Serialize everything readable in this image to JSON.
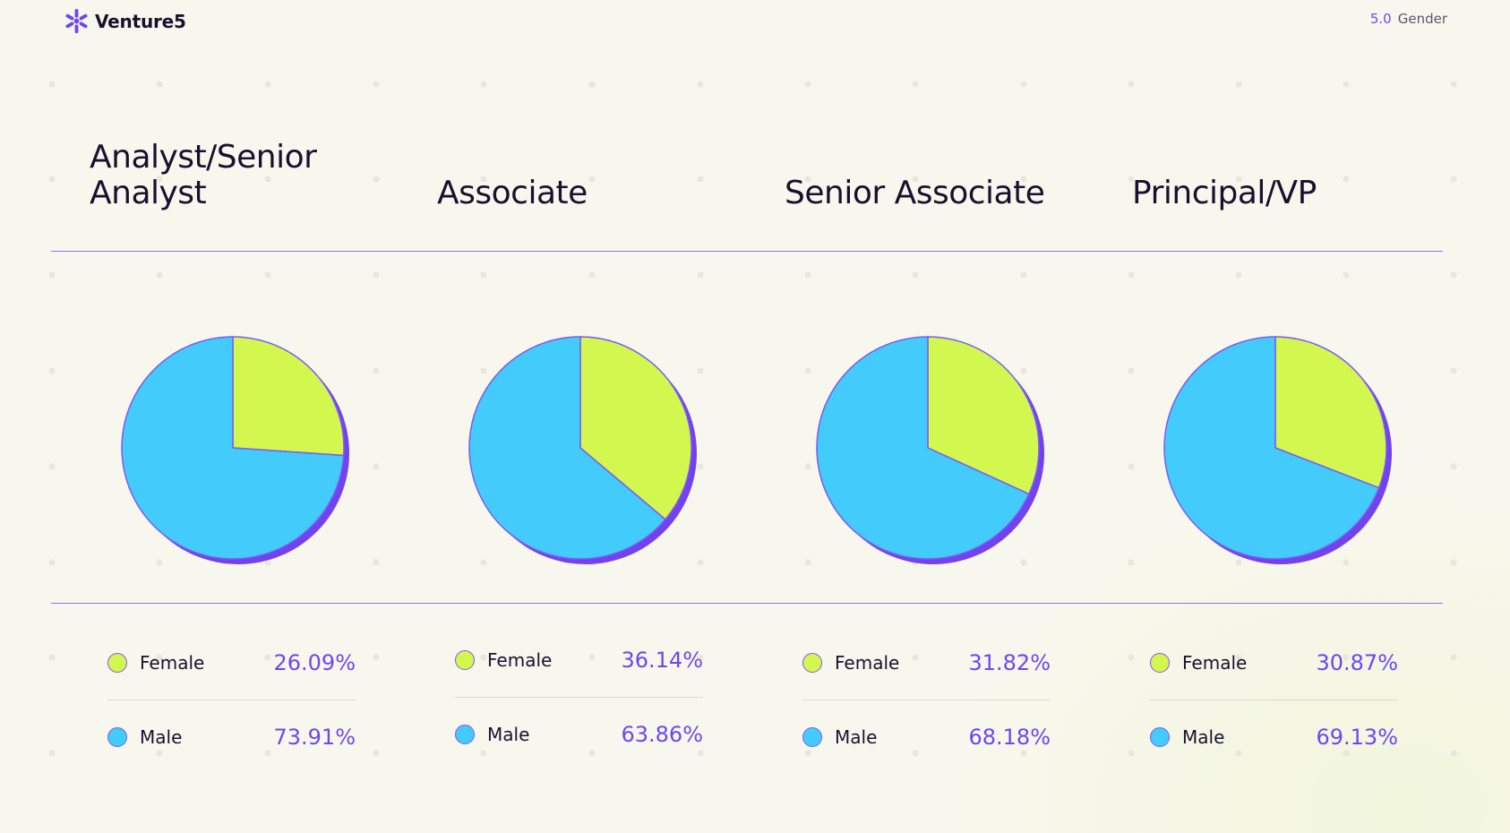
{
  "header": {
    "brand": "Venture5",
    "section_number": "5.0",
    "section_title": "Gender"
  },
  "colors": {
    "female": "#d2f74e",
    "male": "#43cbfb",
    "shadow": "#7342f0",
    "accent": "#6b48f0",
    "outline": "#7c5cf0"
  },
  "chart_data": [
    {
      "type": "pie",
      "title": "Analyst/Senior Analyst",
      "labels": [
        "Female",
        "Male"
      ],
      "label_text": [
        "Female",
        "Male"
      ],
      "values": [
        26.09,
        73.91
      ],
      "value_labels": [
        "26.09%",
        "73.91%"
      ]
    },
    {
      "type": "pie",
      "title": "Associate",
      "labels": [
        "Female",
        "Male"
      ],
      "label_text": [
        "Female",
        "Male"
      ],
      "values": [
        36.14,
        63.86
      ],
      "value_labels": [
        "36.14%",
        "63.86%"
      ]
    },
    {
      "type": "pie",
      "title": "Senior Associate",
      "labels": [
        "Female",
        "Male"
      ],
      "label_text": [
        "Female",
        "Male"
      ],
      "values": [
        31.82,
        68.18
      ],
      "value_labels": [
        "31.82%",
        "68.18%"
      ]
    },
    {
      "type": "pie",
      "title": "Principal/VP",
      "labels": [
        "Female",
        "Male"
      ],
      "label_text": [
        "Female",
        "Male"
      ],
      "values": [
        30.87,
        69.13
      ],
      "value_labels": [
        "30.87%",
        "69.13%"
      ]
    }
  ]
}
